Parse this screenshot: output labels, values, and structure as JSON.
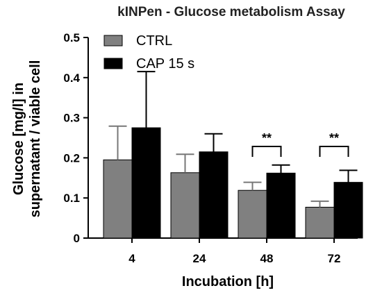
{
  "chart_data": {
    "type": "bar",
    "title": "kINPen - Glucose metabolism Assay",
    "xlabel": "Incubation [h]",
    "ylabel_lines": [
      "Glucose [mg/l] in",
      "supernatant / viable cell"
    ],
    "categories": [
      "4",
      "24",
      "48",
      "72"
    ],
    "ylim": [
      0,
      0.5
    ],
    "yticks": [
      "0",
      "0.1",
      "0.2",
      "0.3",
      "0.4",
      "0.5"
    ],
    "legend_position": "top-left",
    "grid": false,
    "series": [
      {
        "name": "CTRL",
        "color": "#808080",
        "values": [
          0.195,
          0.163,
          0.119,
          0.077
        ],
        "errors": [
          0.084,
          0.046,
          0.02,
          0.015
        ]
      },
      {
        "name": "CAP 15 s",
        "color": "#000000",
        "values": [
          0.275,
          0.215,
          0.162,
          0.139
        ],
        "errors": [
          0.14,
          0.045,
          0.02,
          0.03
        ]
      }
    ],
    "annotations": [
      {
        "category_index": 2,
        "text": "**"
      },
      {
        "category_index": 3,
        "text": "**"
      }
    ]
  }
}
